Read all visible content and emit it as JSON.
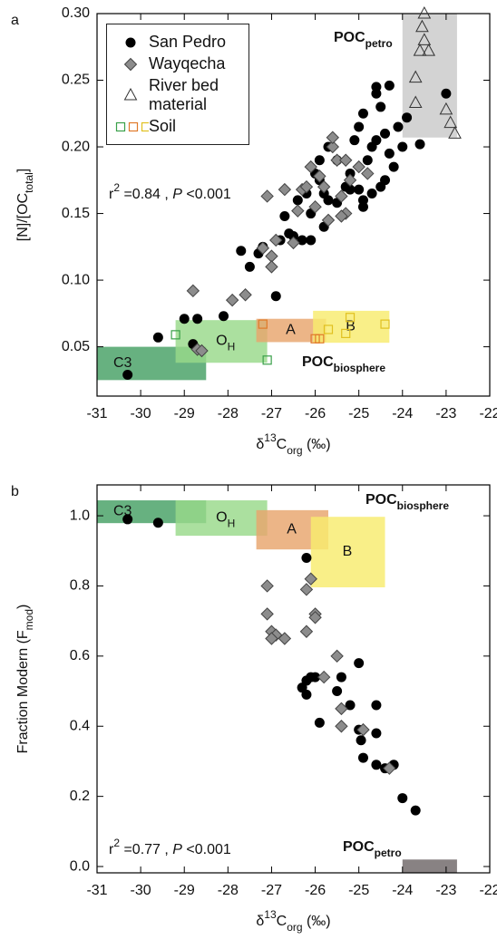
{
  "chart_data": [
    {
      "type": "scatter",
      "panel_label": "a",
      "xlabel": [
        "δ",
        "13",
        "C",
        "org",
        " (‰)"
      ],
      "ylabel": [
        "[N]/[OC",
        "total",
        "]"
      ],
      "xlim": [
        -31,
        -22
      ],
      "ylim": [
        0.013,
        0.3
      ],
      "xticks": [
        -31,
        -30,
        -29,
        -28,
        -27,
        -26,
        -25,
        -24,
        -23,
        -22
      ],
      "yticks": [
        {
          "value": 0.05,
          "label": "0.05"
        },
        {
          "value": 0.1,
          "label": "0.10"
        },
        0.15,
        {
          "value": 0.2,
          "label": "0.20"
        },
        0.25,
        {
          "value": 0.3,
          "label": "0.30"
        }
      ],
      "legend": true,
      "stat_text": [
        "r",
        "2",
        " =0.84 , ",
        "P",
        " <0.001"
      ],
      "regions": [
        {
          "label": [
            "C3"
          ],
          "color": "#45a064",
          "x": [
            -31,
            -28.5
          ],
          "y": [
            0.025,
            0.05
          ]
        },
        {
          "label": [
            "O",
            "H"
          ],
          "color": "#98d98a",
          "x": [
            -29.2,
            -27.1
          ],
          "y": [
            0.038,
            0.07
          ]
        },
        {
          "label": [
            "A"
          ],
          "color": "#e8a56d",
          "x": [
            -27.35,
            -25.75
          ],
          "y": [
            0.0535,
            0.071
          ]
        },
        {
          "label": [
            "B"
          ],
          "color": "#f8ec6e",
          "x": [
            -26.05,
            -24.3
          ],
          "y": [
            0.053,
            0.077
          ]
        },
        {
          "label": [],
          "color": "#c9c9c9",
          "x": [
            -24.0,
            -22.75
          ],
          "y": [
            0.207,
            0.3
          ]
        }
      ],
      "annotations": [
        {
          "parts": [
            "POC",
            "petro"
          ]
        },
        {
          "parts": [
            "POC",
            "biosphere"
          ]
        }
      ],
      "series": [
        {
          "name": "San Pedro",
          "marker": "circle",
          "color": "#000000",
          "x": [
            -30.3,
            -29.6,
            -29.0,
            -28.7,
            -28.8,
            -28.1,
            -27.7,
            -27.5,
            -27.3,
            -27.2,
            -26.9,
            -26.8,
            -26.5,
            -26.3,
            -26.1,
            -26.7,
            -26.4,
            -26.2,
            -26.0,
            -25.9,
            -25.8,
            -25.7,
            -25.5,
            -25.3,
            -25.2,
            -25.0,
            -24.9,
            -24.8,
            -24.7,
            -24.6,
            -24.6,
            -24.5,
            -24.4,
            -24.3,
            -24.2,
            -24.4,
            -24.9,
            -25.0,
            -25.1,
            -24.3,
            -24.5,
            -24.7,
            -25.5,
            -25.7,
            -25.9,
            -26.1,
            -25.8,
            -24.9,
            -24.1,
            -24.0,
            -23.9,
            -23.6,
            -23.0,
            -26.6,
            -25.2,
            -24.6
          ],
          "y": [
            0.029,
            0.057,
            0.071,
            0.071,
            0.052,
            0.073,
            0.122,
            0.11,
            0.12,
            0.125,
            0.088,
            0.13,
            0.133,
            0.13,
            0.13,
            0.148,
            0.16,
            0.165,
            0.18,
            0.19,
            0.165,
            0.16,
            0.158,
            0.17,
            0.18,
            0.168,
            0.16,
            0.19,
            0.2,
            0.24,
            0.245,
            0.23,
            0.21,
            0.195,
            0.185,
            0.175,
            0.225,
            0.215,
            0.205,
            0.246,
            0.17,
            0.165,
            0.19,
            0.2,
            0.175,
            0.15,
            0.14,
            0.155,
            0.215,
            0.2,
            0.222,
            0.202,
            0.24,
            0.135,
            0.168,
            0.205
          ]
        },
        {
          "name": "Wayqecha",
          "marker": "diamond",
          "color": "#8c8c8c",
          "x": [
            -28.8,
            -28.7,
            -28.6,
            -27.9,
            -27.6,
            -27.2,
            -27.0,
            -27.0,
            -27.1,
            -26.9,
            -26.7,
            -26.5,
            -26.4,
            -26.3,
            -26.1,
            -26.0,
            -25.9,
            -25.8,
            -25.6,
            -25.6,
            -25.5,
            -25.4,
            -25.3,
            -25.4,
            -25.2,
            -25.0,
            -24.8,
            -25.7,
            -26.2,
            -25.3
          ],
          "y": [
            0.092,
            0.048,
            0.047,
            0.085,
            0.089,
            0.124,
            0.118,
            0.11,
            0.163,
            0.13,
            0.168,
            0.128,
            0.152,
            0.168,
            0.185,
            0.155,
            0.178,
            0.17,
            0.2,
            0.207,
            0.19,
            0.163,
            0.15,
            0.148,
            0.175,
            0.185,
            0.18,
            0.145,
            0.17,
            0.19
          ]
        },
        {
          "name": "River bed material",
          "marker": "triangle",
          "color": "#333333",
          "x": [
            -23.5,
            -23.55,
            -23.6,
            -23.4,
            -23.5,
            -23.7,
            -23.7,
            -23.0,
            -22.9,
            -22.8
          ],
          "y": [
            0.3,
            0.29,
            0.272,
            0.272,
            0.28,
            0.252,
            0.233,
            0.228,
            0.218,
            0.21
          ]
        },
        {
          "name": "Soil",
          "marker": "square",
          "colors": [
            "#3aa04a",
            "#3aa04a",
            "#e07a2a",
            "#e07a2a",
            "#e07a2a",
            "#e0c020",
            "#e0c020",
            "#e0c020",
            "#e0c020"
          ],
          "x": [
            -29.2,
            -27.1,
            -27.2,
            -26.0,
            -25.9,
            -25.7,
            -25.3,
            -25.2,
            -24.4
          ],
          "y": [
            0.059,
            0.04,
            0.067,
            0.056,
            0.056,
            0.063,
            0.06,
            0.072,
            0.067
          ]
        }
      ]
    },
    {
      "type": "scatter",
      "panel_label": "b",
      "xlabel": [
        "δ",
        "13",
        "C",
        "org",
        " (‰)"
      ],
      "ylabel": [
        "Fraction Modern (F",
        "mod",
        ")"
      ],
      "xlim": [
        -31,
        -22
      ],
      "ylim": [
        -0.018,
        1.088
      ],
      "xticks": [
        -31,
        -30,
        -29,
        -28,
        -27,
        -26,
        -25,
        -24,
        -23,
        -22
      ],
      "yticks": [
        {
          "value": 0,
          "label": "0.0"
        },
        0.2,
        0.4,
        0.6,
        0.8,
        {
          "value": 1,
          "label": "1.0"
        }
      ],
      "legend": false,
      "stat_text": [
        "r",
        "2",
        " =0.77 , ",
        "P",
        " <0.001"
      ],
      "regions": [
        {
          "label": [
            "C3"
          ],
          "color": "#45a064",
          "x": [
            -31,
            -28.5
          ],
          "y": [
            0.979,
            1.044
          ]
        },
        {
          "label": [
            "O",
            "H"
          ],
          "color": "#98d98a",
          "x": [
            -29.2,
            -27.1
          ],
          "y": [
            0.943,
            1.044
          ]
        },
        {
          "label": [
            "A"
          ],
          "color": "#e8a56d",
          "x": [
            -27.35,
            -25.7
          ],
          "y": [
            0.904,
            1.016
          ]
        },
        {
          "label": [
            "B"
          ],
          "color": "#f8ec6e",
          "x": [
            -26.1,
            -24.4
          ],
          "y": [
            0.796,
            0.997
          ]
        },
        {
          "label": [],
          "color": "#6e6668",
          "x": [
            -24.0,
            -22.75
          ],
          "y": [
            -0.018,
            0.02
          ]
        }
      ],
      "annotations": [
        {
          "parts": [
            "POC",
            "biosphere"
          ]
        },
        {
          "parts": [
            "POC",
            "petro"
          ]
        }
      ],
      "series": [
        {
          "name": "San Pedro",
          "marker": "circle",
          "color": "#000000",
          "x": [
            -30.3,
            -29.6,
            -26.2,
            -26.3,
            -26.2,
            -26.1,
            -26.0,
            -26.2,
            -25.9,
            -25.5,
            -25.4,
            -25.2,
            -25.0,
            -24.95,
            -25.0,
            -24.9,
            -24.6,
            -24.6,
            -24.6,
            -24.4,
            -24.2,
            -24.0,
            -23.7
          ],
          "y": [
            0.99,
            0.98,
            0.88,
            0.51,
            0.53,
            0.54,
            0.54,
            0.49,
            0.41,
            0.5,
            0.54,
            0.46,
            0.58,
            0.36,
            0.39,
            0.31,
            0.46,
            0.38,
            0.29,
            0.28,
            0.29,
            0.195,
            0.16
          ]
        },
        {
          "name": "Wayqecha",
          "marker": "diamond",
          "color": "#8c8c8c",
          "x": [
            -27.1,
            -27.1,
            -27.0,
            -26.9,
            -27.0,
            -26.7,
            -26.2,
            -26.1,
            -26.0,
            -26.2,
            -26.0,
            -25.8,
            -25.5,
            -25.4,
            -25.4,
            -24.9,
            -24.3
          ],
          "y": [
            0.8,
            0.72,
            0.67,
            0.66,
            0.65,
            0.65,
            0.79,
            0.82,
            0.72,
            0.67,
            0.71,
            0.54,
            0.6,
            0.45,
            0.4,
            0.39,
            0.28
          ]
        }
      ]
    }
  ]
}
